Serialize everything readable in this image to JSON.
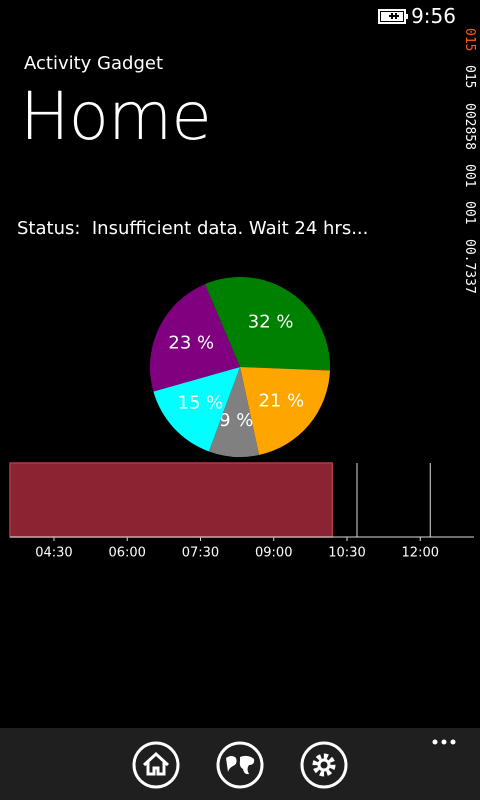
{
  "status_bar": {
    "time": "9:56"
  },
  "debug_counters": [
    "015",
    "015",
    "002858",
    "001",
    "001",
    "00.7337"
  ],
  "app_title": "Activity Gadget",
  "page_title": "Home",
  "status": {
    "label": "Status:",
    "text": "Insufficient data. Wait 24 hrs..."
  },
  "pie": {
    "type": "pie",
    "slices": [
      {
        "value": 32,
        "label": "32 %",
        "color": "#008000"
      },
      {
        "value": 21,
        "label": "21 %",
        "color": "#ffa500"
      },
      {
        "value": 9,
        "label": "9 %",
        "color": "#808080"
      },
      {
        "value": 15,
        "label": "15 %",
        "color": "#00ffff"
      },
      {
        "value": 23,
        "label": "23 %",
        "color": "#800080"
      }
    ]
  },
  "timeline": {
    "type": "range",
    "xlim": [
      3.6,
      13.1
    ],
    "xticks": [
      {
        "value": 4.5,
        "label": "04:30"
      },
      {
        "value": 6,
        "label": "06:00"
      },
      {
        "value": 7.5,
        "label": "07:30"
      },
      {
        "value": 9,
        "label": "09:00"
      },
      {
        "value": 10.5,
        "label": "10:30"
      },
      {
        "value": 12,
        "label": "12:00"
      }
    ],
    "range": [
      3.6,
      10.2
    ],
    "color": "#8b2332"
  }
}
